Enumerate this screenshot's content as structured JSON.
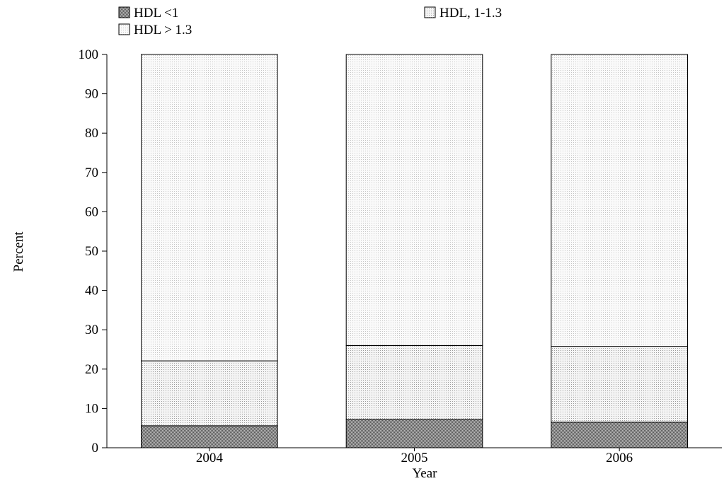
{
  "chart_data": {
    "type": "bar",
    "stacked": true,
    "categories": [
      "2004",
      "2005",
      "2006"
    ],
    "series": [
      {
        "name": "HDL <1",
        "values": [
          5.6,
          7.2,
          6.5
        ],
        "pattern": "dense-dots",
        "color": "#8c8c8c"
      },
      {
        "name": "HDL, 1-1.3",
        "values": [
          16.5,
          18.8,
          19.3
        ],
        "pattern": "medium-dots",
        "color": "#b0b0b0"
      },
      {
        "name": "HDL > 1.3",
        "values": [
          77.9,
          74.0,
          74.2
        ],
        "pattern": "fine-dots",
        "color": "#d2d2d2"
      }
    ],
    "xlabel": "Year",
    "ylabel": "Percent",
    "ylim": [
      0,
      100
    ],
    "yticks": [
      0,
      10,
      20,
      30,
      40,
      50,
      60,
      70,
      80,
      90,
      100
    ],
    "grid": false,
    "legend_position": "top"
  }
}
